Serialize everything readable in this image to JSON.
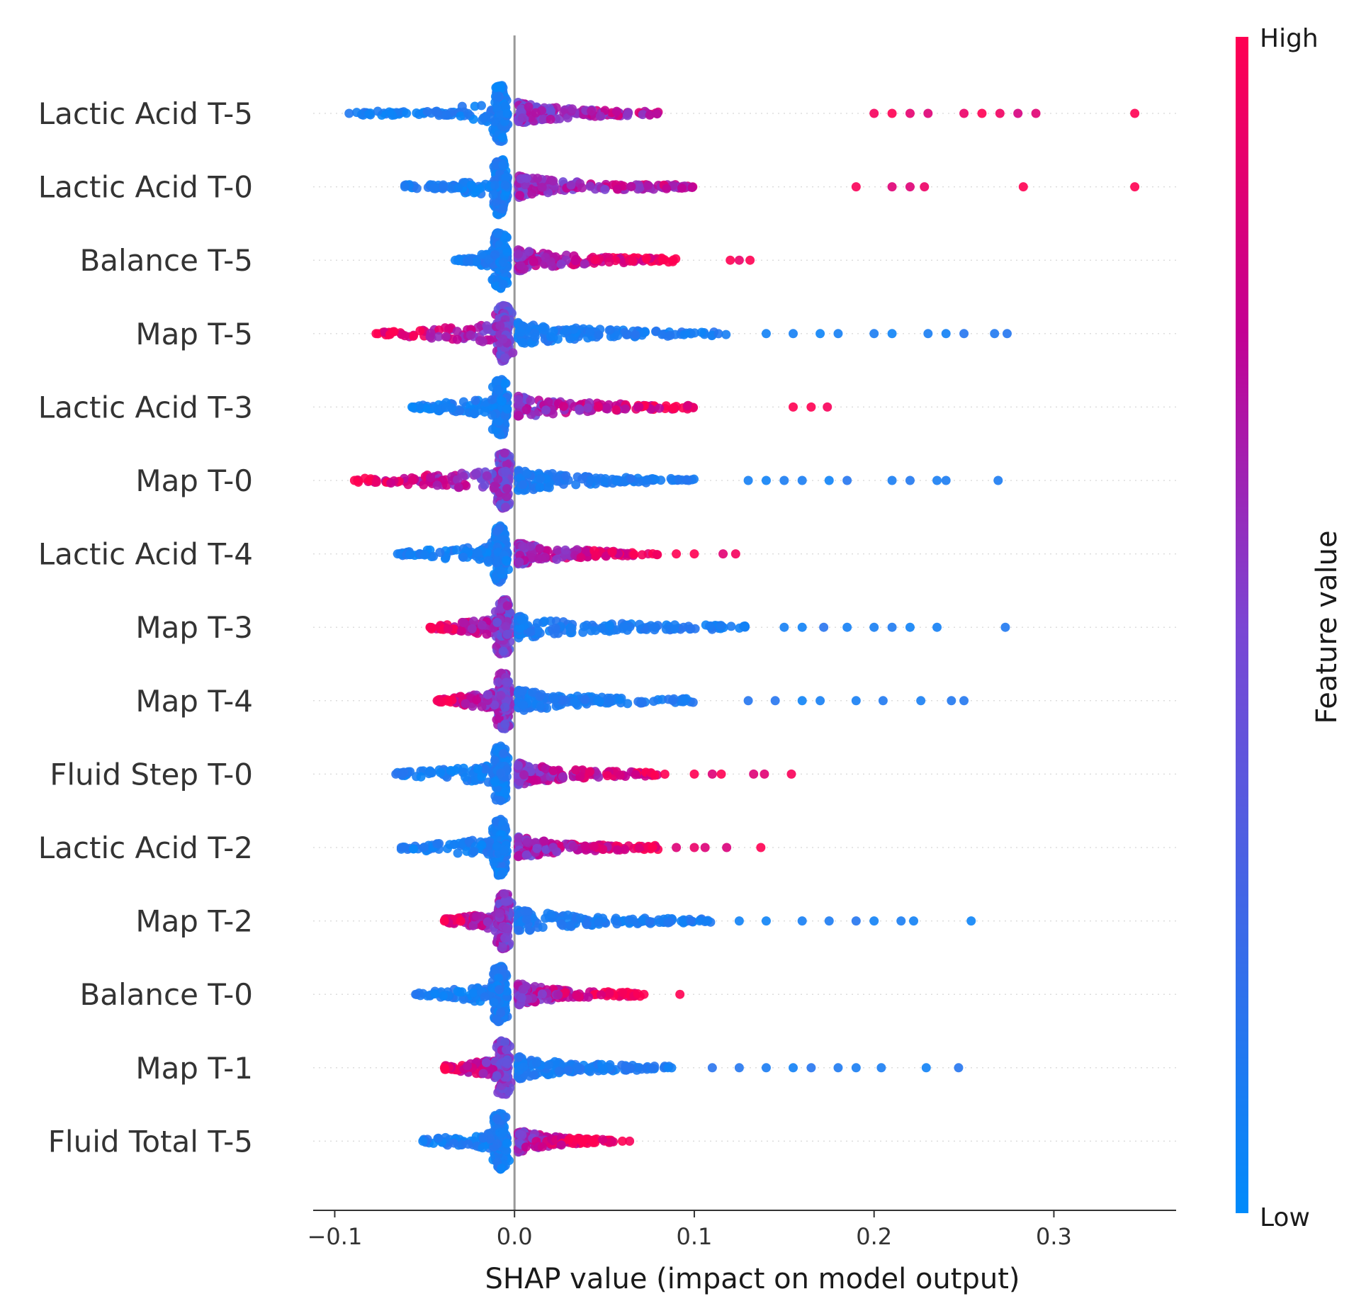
{
  "chart_data": {
    "type": "scatter",
    "subtype": "shap-beeswarm",
    "xlabel": "SHAP value (impact on model output)",
    "xlim": [
      -0.112,
      0.368
    ],
    "xticks": [
      -0.1,
      0.0,
      0.1,
      0.2,
      0.3
    ],
    "xtick_labels": [
      "−0.1",
      "0.0",
      "0.1",
      "0.2",
      "0.3"
    ],
    "colorbar": {
      "title": "Feature value",
      "high_label": "High",
      "low_label": "Low",
      "low_color": "#008bfb",
      "high_color": "#ff0052"
    },
    "features": [
      {
        "name": "Lactic Acid T-5",
        "min": -0.092,
        "max": 0.345,
        "dense_left": -0.03,
        "dense_right": 0.08,
        "pos_color": "high",
        "outliers": [
          0.2,
          0.21,
          0.22,
          0.23,
          0.25,
          0.26,
          0.27,
          0.28,
          0.29,
          0.345
        ]
      },
      {
        "name": "Lactic Acid T-0",
        "min": -0.061,
        "max": 0.345,
        "dense_left": -0.03,
        "dense_right": 0.1,
        "pos_color": "high",
        "outliers": [
          0.19,
          0.21,
          0.22,
          0.228,
          0.283,
          0.345
        ]
      },
      {
        "name": "Balance T-5",
        "min": -0.033,
        "max": 0.131,
        "dense_left": -0.02,
        "dense_right": 0.09,
        "pos_color": "high",
        "outliers": [
          0.12,
          0.125,
          0.131
        ]
      },
      {
        "name": "Map T-5",
        "min": -0.077,
        "max": 0.274,
        "dense_left": -0.06,
        "dense_right": 0.12,
        "pos_color": "low",
        "outliers": [
          0.14,
          0.155,
          0.17,
          0.18,
          0.2,
          0.21,
          0.23,
          0.24,
          0.25,
          0.267,
          0.274
        ]
      },
      {
        "name": "Lactic Acid T-3",
        "min": -0.057,
        "max": 0.174,
        "dense_left": -0.045,
        "dense_right": 0.1,
        "pos_color": "high",
        "outliers": [
          0.155,
          0.165,
          0.174
        ]
      },
      {
        "name": "Map T-0",
        "min": -0.089,
        "max": 0.269,
        "dense_left": -0.07,
        "dense_right": 0.1,
        "pos_color": "low",
        "outliers": [
          0.13,
          0.14,
          0.15,
          0.16,
          0.175,
          0.185,
          0.21,
          0.22,
          0.235,
          0.24,
          0.269
        ]
      },
      {
        "name": "Lactic Acid T-4",
        "min": -0.065,
        "max": 0.123,
        "dense_left": -0.05,
        "dense_right": 0.08,
        "pos_color": "high",
        "outliers": [
          0.09,
          0.1,
          0.116,
          0.123
        ]
      },
      {
        "name": "Map T-3",
        "min": -0.047,
        "max": 0.273,
        "dense_left": -0.04,
        "dense_right": 0.13,
        "pos_color": "low",
        "outliers": [
          0.15,
          0.16,
          0.172,
          0.185,
          0.2,
          0.21,
          0.22,
          0.235,
          0.273
        ]
      },
      {
        "name": "Map T-4",
        "min": -0.043,
        "max": 0.25,
        "dense_left": -0.035,
        "dense_right": 0.1,
        "pos_color": "low",
        "outliers": [
          0.13,
          0.145,
          0.16,
          0.17,
          0.19,
          0.205,
          0.226,
          0.243,
          0.25
        ]
      },
      {
        "name": "Fluid Step T-0",
        "min": -0.066,
        "max": 0.154,
        "dense_left": -0.06,
        "dense_right": 0.085,
        "pos_color": "high",
        "outliers": [
          0.1,
          0.11,
          0.115,
          0.133,
          0.139,
          0.154
        ]
      },
      {
        "name": "Lactic Acid T-2",
        "min": -0.063,
        "max": 0.137,
        "dense_left": -0.05,
        "dense_right": 0.08,
        "pos_color": "high",
        "outliers": [
          0.09,
          0.1,
          0.106,
          0.118,
          0.137
        ]
      },
      {
        "name": "Map T-2",
        "min": -0.039,
        "max": 0.254,
        "dense_left": -0.035,
        "dense_right": 0.11,
        "pos_color": "low",
        "outliers": [
          0.125,
          0.14,
          0.16,
          0.175,
          0.19,
          0.2,
          0.215,
          0.222,
          0.254
        ]
      },
      {
        "name": "Balance T-0",
        "min": -0.055,
        "max": 0.092,
        "dense_left": -0.045,
        "dense_right": 0.07,
        "pos_color": "high",
        "outliers": [
          0.072,
          0.092
        ]
      },
      {
        "name": "Map T-1",
        "min": -0.039,
        "max": 0.247,
        "dense_left": -0.035,
        "dense_right": 0.09,
        "pos_color": "low",
        "outliers": [
          0.11,
          0.125,
          0.14,
          0.155,
          0.165,
          0.18,
          0.19,
          0.204,
          0.229,
          0.247
        ]
      },
      {
        "name": "Fluid Total T-5",
        "min": -0.051,
        "max": 0.064,
        "dense_left": -0.045,
        "dense_right": 0.055,
        "pos_color": "high",
        "outliers": [
          0.06,
          0.064
        ]
      }
    ]
  }
}
